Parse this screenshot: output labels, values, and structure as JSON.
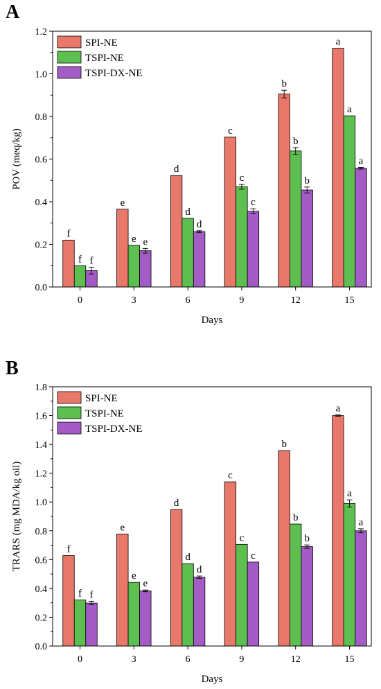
{
  "chart_data": [
    {
      "panel_label": "A",
      "type": "bar",
      "xlabel": "Days",
      "ylabel": "POV (meq/kg)",
      "ylim": [
        0,
        1.2
      ],
      "yticks": [
        "0.0",
        "0.2",
        "0.4",
        "0.6",
        "0.8",
        "1.0",
        "1.2"
      ],
      "categories": [
        "0",
        "3",
        "6",
        "9",
        "12",
        "15"
      ],
      "legend_position": "top-left",
      "grid": false,
      "series": [
        {
          "name": "SPI-NE",
          "color": "#E8786A",
          "values": [
            0.22,
            0.365,
            0.523,
            0.703,
            0.905,
            1.12
          ],
          "errors": [
            0.0,
            0.0,
            0.0,
            0.0,
            0.018,
            0.0
          ],
          "letters": [
            "f",
            "e",
            "d",
            "c",
            "b",
            "a"
          ]
        },
        {
          "name": "TSPI-NE",
          "color": "#5DBF50",
          "values": [
            0.1,
            0.195,
            0.322,
            0.47,
            0.638,
            0.803
          ],
          "errors": [
            0.0,
            0.0,
            0.0,
            0.011,
            0.016,
            0.0
          ],
          "letters": [
            "f",
            "e",
            "d",
            "c",
            "b",
            "a"
          ]
        },
        {
          "name": "TSPI-DX-NE",
          "color": "#A35CC6",
          "values": [
            0.077,
            0.17,
            0.26,
            0.355,
            0.455,
            0.557
          ],
          "errors": [
            0.016,
            0.011,
            0.004,
            0.012,
            0.014,
            0.004
          ],
          "letters": [
            "f",
            "e",
            "d",
            "c",
            "b",
            "a"
          ]
        }
      ]
    },
    {
      "panel_label": "B",
      "type": "bar",
      "xlabel": "Days",
      "ylabel": "TRARS (mg MDA/kg oil)",
      "ylim": [
        0,
        1.8
      ],
      "yticks": [
        "0.0",
        "0.2",
        "0.4",
        "0.6",
        "0.8",
        "1.0",
        "1.2",
        "1.4",
        "1.6",
        "1.8"
      ],
      "categories": [
        "0",
        "3",
        "6",
        "9",
        "12",
        "15"
      ],
      "legend_position": "top-left",
      "grid": false,
      "series": [
        {
          "name": "SPI-NE",
          "color": "#E8786A",
          "values": [
            0.628,
            0.778,
            0.948,
            1.14,
            1.357,
            1.6
          ],
          "errors": [
            0.0,
            0.0,
            0.0,
            0.0,
            0.0,
            0.005
          ],
          "letters": [
            "f",
            "e",
            "d",
            "c",
            "b",
            "a"
          ]
        },
        {
          "name": "TSPI-NE",
          "color": "#5DBF50",
          "values": [
            0.32,
            0.442,
            0.572,
            0.706,
            0.847,
            0.99
          ],
          "errors": [
            0.0,
            0.0,
            0.0,
            0.0,
            0.0,
            0.025
          ],
          "letters": [
            "f",
            "e",
            "d",
            "c",
            "b",
            "a"
          ]
        },
        {
          "name": "TSPI-DX-NE",
          "color": "#A35CC6",
          "values": [
            0.298,
            0.383,
            0.478,
            0.583,
            0.69,
            0.8
          ],
          "errors": [
            0.012,
            0.006,
            0.008,
            0.0,
            0.012,
            0.014
          ],
          "letters": [
            "f",
            "e",
            "d",
            "c",
            "b",
            "a"
          ]
        }
      ]
    }
  ]
}
